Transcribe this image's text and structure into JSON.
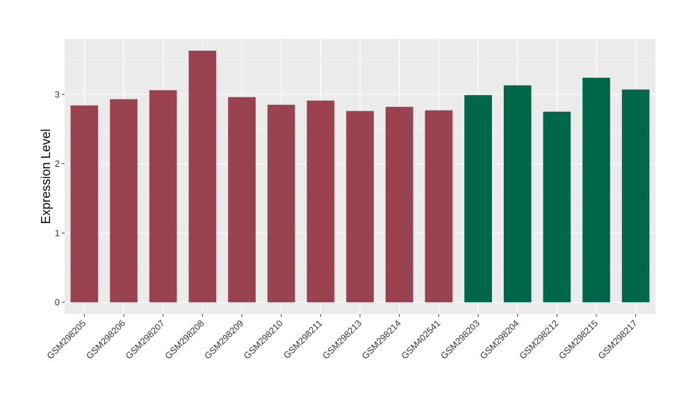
{
  "chart_data": {
    "type": "bar",
    "title": "",
    "xlabel": "",
    "ylabel": "Expression Level",
    "ylim": [
      -0.17,
      3.8
    ],
    "yticks": [
      0,
      1,
      2,
      3
    ],
    "grid": true,
    "background": "#ebebeb",
    "categories": [
      "GSM298205",
      "GSM298206",
      "GSM298207",
      "GSM298208",
      "GSM298209",
      "GSM298210",
      "GSM298211",
      "GSM298213",
      "GSM298214",
      "GSM402541",
      "GSM298203",
      "GSM298204",
      "GSM298212",
      "GSM298215",
      "GSM298217"
    ],
    "values": [
      2.84,
      2.93,
      3.06,
      3.63,
      2.96,
      2.85,
      2.91,
      2.76,
      2.82,
      2.77,
      2.99,
      3.13,
      2.75,
      3.24,
      3.07
    ],
    "colors": [
      "#9a4250",
      "#9a4250",
      "#9a4250",
      "#9a4250",
      "#9a4250",
      "#9a4250",
      "#9a4250",
      "#9a4250",
      "#9a4250",
      "#9a4250",
      "#00674a",
      "#00674a",
      "#00674a",
      "#00674a",
      "#00674a"
    ]
  }
}
